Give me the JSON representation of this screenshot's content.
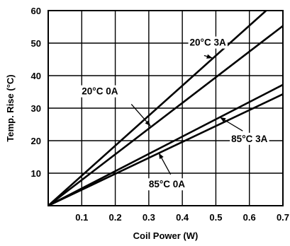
{
  "chart_data": {
    "type": "line",
    "title": "",
    "xlabel": "Coil Power (W)",
    "ylabel": "Temp. Rise (°C)",
    "xlim": [
      0,
      0.7
    ],
    "ylim": [
      0,
      60
    ],
    "xticks": [
      0.1,
      0.2,
      0.3,
      0.4,
      0.5,
      0.6,
      0.7
    ],
    "xtick_labels": [
      "0.1",
      "0.2",
      "0.3",
      "0.4",
      "0.5",
      "0.6",
      "0.7"
    ],
    "yticks": [
      10,
      20,
      30,
      40,
      50,
      60
    ],
    "ytick_labels": [
      "10",
      "20",
      "30",
      "40",
      "50",
      "60"
    ],
    "grid": true,
    "legend": "none",
    "colors": {
      "line": "#000000",
      "grid": "#000000",
      "background": "#ffffff"
    },
    "series": [
      {
        "name": "20°C 3A",
        "x": [
          0,
          0.65
        ],
        "y": [
          0,
          60
        ]
      },
      {
        "name": "20°C 0A",
        "x": [
          0,
          0.7
        ],
        "y": [
          0,
          55.3
        ]
      },
      {
        "name": "85°C 3A",
        "x": [
          0,
          0.7
        ],
        "y": [
          0,
          37.2
        ]
      },
      {
        "name": "85°C 0A",
        "x": [
          0,
          0.7
        ],
        "y": [
          0,
          34.3
        ]
      }
    ],
    "annotations": [
      {
        "text": "20°C 3A",
        "series": 0,
        "label_x": 0.422,
        "label_y": 49.2,
        "arrow_from": [
          0.465,
          46.2
        ],
        "arrow_to": [
          0.49,
          45.4
        ]
      },
      {
        "text": "20°C 0A",
        "series": 1,
        "label_x": 0.1,
        "label_y": 34.2,
        "arrow_from": [
          0.248,
          31.2
        ],
        "arrow_to": [
          0.305,
          24.5
        ]
      },
      {
        "text": "85°C 3A",
        "series": 2,
        "label_x": 0.546,
        "label_y": 19.6,
        "arrow_from": [
          0.58,
          23.0
        ],
        "arrow_to": [
          0.512,
          27.2
        ]
      },
      {
        "text": "85°C 0A",
        "series": 3,
        "label_x": 0.3,
        "label_y": 5.6,
        "arrow_from": [
          0.365,
          9.6
        ],
        "arrow_to": [
          0.33,
          16.2
        ]
      }
    ]
  }
}
